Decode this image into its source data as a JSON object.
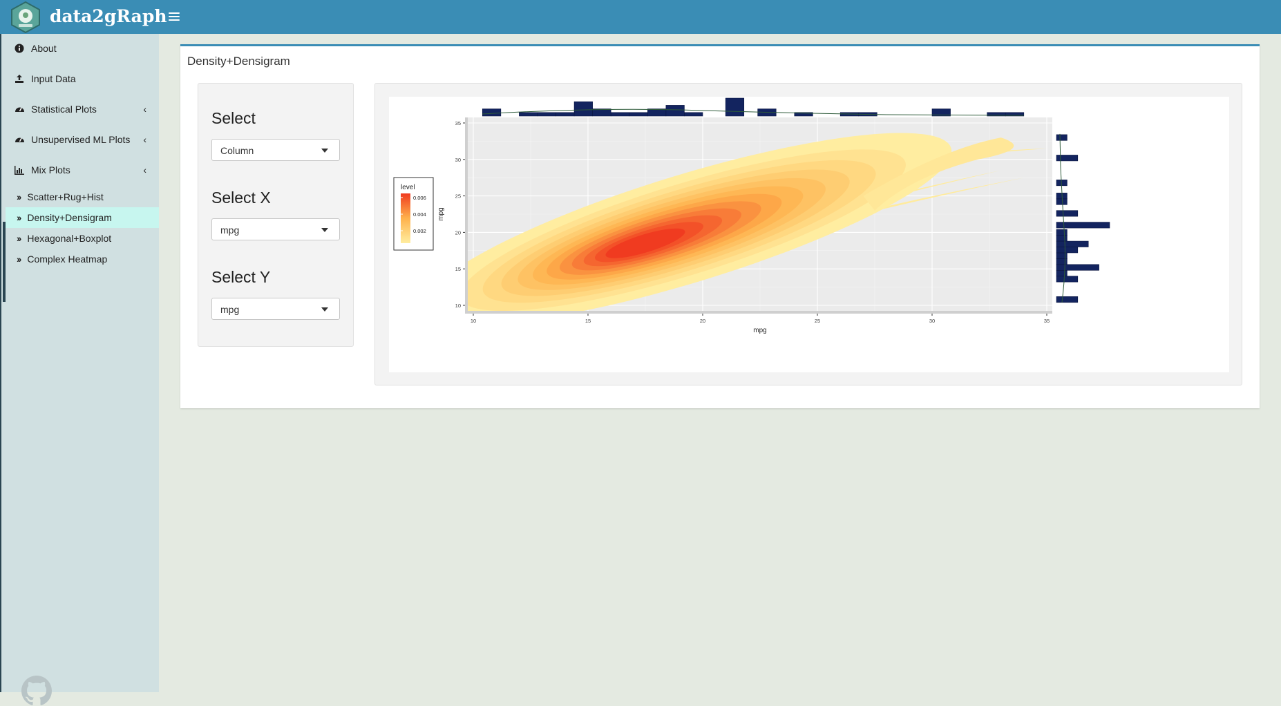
{
  "app": {
    "title": "data2gRaph"
  },
  "sidebar": {
    "items": [
      {
        "label": "About",
        "icon": "info-circle-icon"
      },
      {
        "label": "Input Data",
        "icon": "upload-icon"
      },
      {
        "label": "Statistical Plots",
        "icon": "dashboard-icon"
      },
      {
        "label": "Unsupervised ML Plots",
        "icon": "dashboard-icon"
      },
      {
        "label": "Mix Plots",
        "icon": "bar-chart-icon"
      }
    ],
    "subitems": [
      {
        "label": "Scatter+Rug+Hist",
        "active": false
      },
      {
        "label": "Density+Densigram",
        "active": true
      },
      {
        "label": "Hexagonal+Boxplot",
        "active": false
      },
      {
        "label": "Complex Heatmap",
        "active": false
      }
    ]
  },
  "main": {
    "box_title": "Density+Densigram",
    "controls": {
      "select_label": "Select",
      "select_value": "Column",
      "select_x_label": "Select X",
      "select_x_value": "mpg",
      "select_y_label": "Select Y",
      "select_y_value": "mpg"
    }
  },
  "colors": {
    "header": "#3a8db5",
    "sidebar": "#d0e0e1",
    "active_item": "#c7f6ef",
    "hist_bar": "#13245f",
    "density_low": "#ffeda0",
    "density_high": "#f03b20"
  },
  "chart_data": {
    "type": "heatmap",
    "xlabel": "mpg",
    "ylabel": "mpg",
    "xlim": [
      10,
      35
    ],
    "ylim": [
      10,
      35
    ],
    "x_ticks": [
      10,
      15,
      20,
      25,
      30,
      35
    ],
    "y_ticks": [
      10,
      15,
      20,
      25,
      30,
      35
    ],
    "legend": {
      "title": "level",
      "labels": [
        "0.006",
        "0.004",
        "0.002"
      ],
      "values": [
        0.006,
        0.004,
        0.002
      ],
      "position": "left"
    },
    "density_peak": {
      "x": 17.5,
      "y": 18.5
    },
    "density_levels": [
      0.0005,
      0.001,
      0.0015,
      0.002,
      0.0025,
      0.003,
      0.0035,
      0.004,
      0.0045,
      0.005,
      0.0055,
      0.006
    ],
    "top_histogram": {
      "bins": [
        [
          10.4,
          11.2,
          2
        ],
        [
          12.0,
          12.8,
          1
        ],
        [
          12.8,
          13.6,
          1
        ],
        [
          13.6,
          14.4,
          1
        ],
        [
          14.4,
          15.2,
          4
        ],
        [
          15.2,
          16.0,
          2
        ],
        [
          16.0,
          16.8,
          1
        ],
        [
          16.8,
          17.6,
          1
        ],
        [
          17.6,
          18.4,
          2
        ],
        [
          18.4,
          19.2,
          3
        ],
        [
          19.2,
          20.0,
          1
        ],
        [
          21.0,
          21.8,
          5
        ],
        [
          22.4,
          23.2,
          2
        ],
        [
          24.0,
          24.8,
          1
        ],
        [
          26.0,
          26.8,
          1
        ],
        [
          26.8,
          27.6,
          1
        ],
        [
          30.0,
          30.8,
          2
        ],
        [
          32.4,
          33.2,
          1
        ],
        [
          33.2,
          34.0,
          1
        ]
      ]
    },
    "right_histogram": {
      "bins": [
        [
          10.4,
          11.2,
          2
        ],
        [
          13.2,
          14.0,
          2
        ],
        [
          14.0,
          14.8,
          1
        ],
        [
          14.8,
          15.6,
          4
        ],
        [
          15.6,
          16.4,
          1
        ],
        [
          16.4,
          17.2,
          1
        ],
        [
          17.2,
          18.0,
          2
        ],
        [
          18.0,
          18.8,
          3
        ],
        [
          18.8,
          19.6,
          1
        ],
        [
          19.6,
          20.4,
          1
        ],
        [
          20.6,
          21.4,
          5
        ],
        [
          22.2,
          23.0,
          2
        ],
        [
          23.8,
          24.6,
          1
        ],
        [
          24.6,
          25.4,
          1
        ],
        [
          26.4,
          27.2,
          1
        ],
        [
          29.8,
          30.6,
          2
        ],
        [
          32.6,
          33.4,
          1
        ]
      ]
    }
  }
}
